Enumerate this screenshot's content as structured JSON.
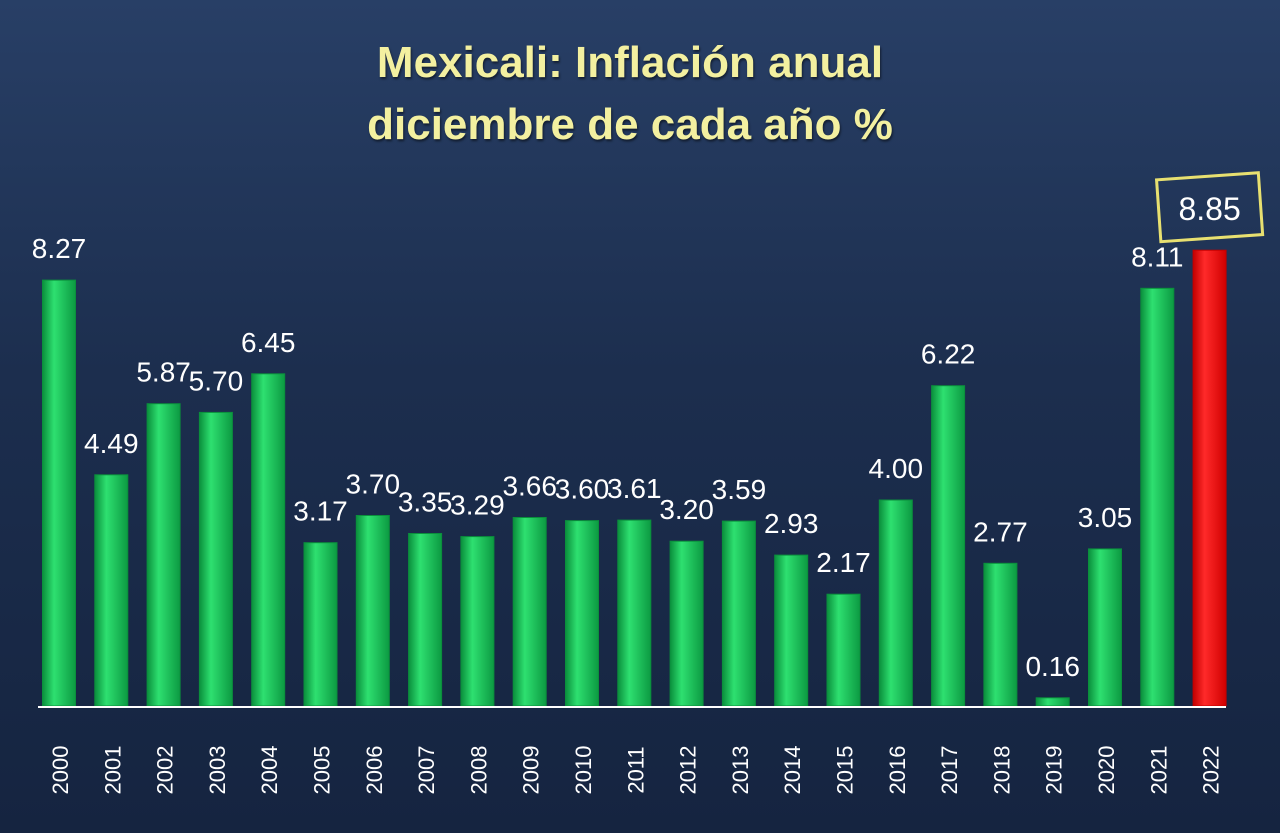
{
  "chart_data": {
    "type": "bar",
    "title": [
      "Mexicali: Inflación anual",
      "diciembre de cada año %"
    ],
    "categories": [
      "2000",
      "2001",
      "2002",
      "2003",
      "2004",
      "2005",
      "2006",
      "2007",
      "2008",
      "2009",
      "2010",
      "2011",
      "2012",
      "2013",
      "2014",
      "2015",
      "2016",
      "2017",
      "2018",
      "2019",
      "2020",
      "2021",
      "2022"
    ],
    "values": [
      8.27,
      4.49,
      5.87,
      5.7,
      6.45,
      3.17,
      3.7,
      3.35,
      3.29,
      3.66,
      3.6,
      3.61,
      3.2,
      3.59,
      2.93,
      2.17,
      4.0,
      6.22,
      2.77,
      0.16,
      3.05,
      8.11,
      8.85
    ],
    "data_labels": [
      "8.27",
      "4.49",
      "5.87",
      "5.70",
      "6.45",
      "3.17",
      "3.70",
      "3.35",
      "3.29",
      "3.66",
      "3.60",
      "3.61",
      "3.20",
      "3.59",
      "2.93",
      "2.17",
      "4.00",
      "6.22",
      "2.77",
      "0.16",
      "3.05",
      "8.11",
      "8.85"
    ],
    "highlight_category": "2022",
    "ylim": [
      0,
      10
    ],
    "grid": false,
    "legend": "none",
    "colors": {
      "bar": "#18c15a",
      "bar_dark": "#0a8f3c",
      "highlight": "#ff1a1a",
      "highlight_dark": "#c20000",
      "label": "#ffffff",
      "title": "#f3f0a0",
      "highlight_box": "#e8e070",
      "axis": "#ffffff"
    }
  }
}
